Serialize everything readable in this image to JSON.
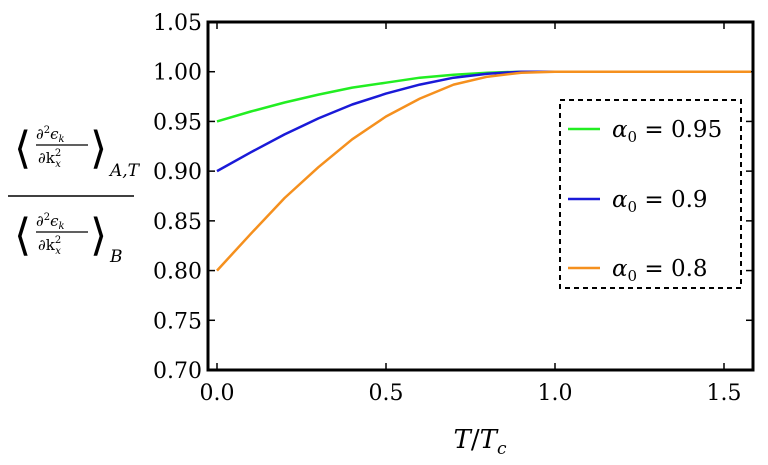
{
  "chart_data": {
    "type": "line",
    "title": "",
    "xlabel": "T/Tc",
    "ylabel": "<∂²εk/∂kx²>A,T / <∂²εk/∂kx²>B",
    "xlim": [
      0,
      1.6
    ],
    "ylim": [
      0.7,
      1.05
    ],
    "xticks": [
      "0.0",
      "0.5",
      "1.0",
      "1.5"
    ],
    "xtick_values": [
      0,
      0.5,
      1.0,
      1.5
    ],
    "yticks": [
      "0.70",
      "0.75",
      "0.80",
      "0.85",
      "0.90",
      "0.95",
      "1.00",
      "1.05"
    ],
    "ytick_values": [
      0.7,
      0.75,
      0.8,
      0.85,
      0.9,
      0.95,
      1.0,
      1.05
    ],
    "x": [
      0,
      0.1,
      0.2,
      0.3,
      0.4,
      0.5,
      0.6,
      0.7,
      0.8,
      0.9,
      1.0,
      1.1,
      1.2,
      1.3,
      1.4,
      1.5,
      1.6
    ],
    "series": [
      {
        "name": "α0 = 0.95",
        "color": "#22ee22",
        "values": [
          0.95,
          0.96,
          0.969,
          0.977,
          0.984,
          0.989,
          0.994,
          0.997,
          0.999,
          1.0,
          1.0,
          1.0,
          1.0,
          1.0,
          1.0,
          1.0,
          1.0
        ]
      },
      {
        "name": "α0 = 0.9",
        "color": "#1a1ad8",
        "values": [
          0.9,
          0.919,
          0.937,
          0.953,
          0.967,
          0.978,
          0.987,
          0.994,
          0.998,
          1.0,
          1.0,
          1.0,
          1.0,
          1.0,
          1.0,
          1.0,
          1.0
        ]
      },
      {
        "name": "α0 = 0.8",
        "color": "#f5901e",
        "values": [
          0.8,
          0.837,
          0.873,
          0.904,
          0.932,
          0.955,
          0.973,
          0.987,
          0.995,
          0.999,
          1.0,
          1.0,
          1.0,
          1.0,
          1.0,
          1.0,
          1.0
        ]
      }
    ],
    "grid": false,
    "legend_position": "right",
    "legend_labels": [
      {
        "symbol": "α",
        "sub": "0",
        "rest": " = 0.95"
      },
      {
        "symbol": "α",
        "sub": "0",
        "rest": " = 0.9"
      },
      {
        "symbol": "α",
        "sub": "0",
        "rest": " = 0.8"
      }
    ],
    "xlabel_parts": {
      "num": "T",
      "slash": "/",
      "den": "T",
      "den_sub": "c"
    },
    "ylabel_parts": {
      "partial_num": "∂",
      "sup": "2",
      "eps": "ϵ",
      "eps_sub": "k",
      "partial_den": "∂k",
      "den_sub": "x",
      "sub_top": "A,T",
      "sub_bottom": "B"
    }
  }
}
